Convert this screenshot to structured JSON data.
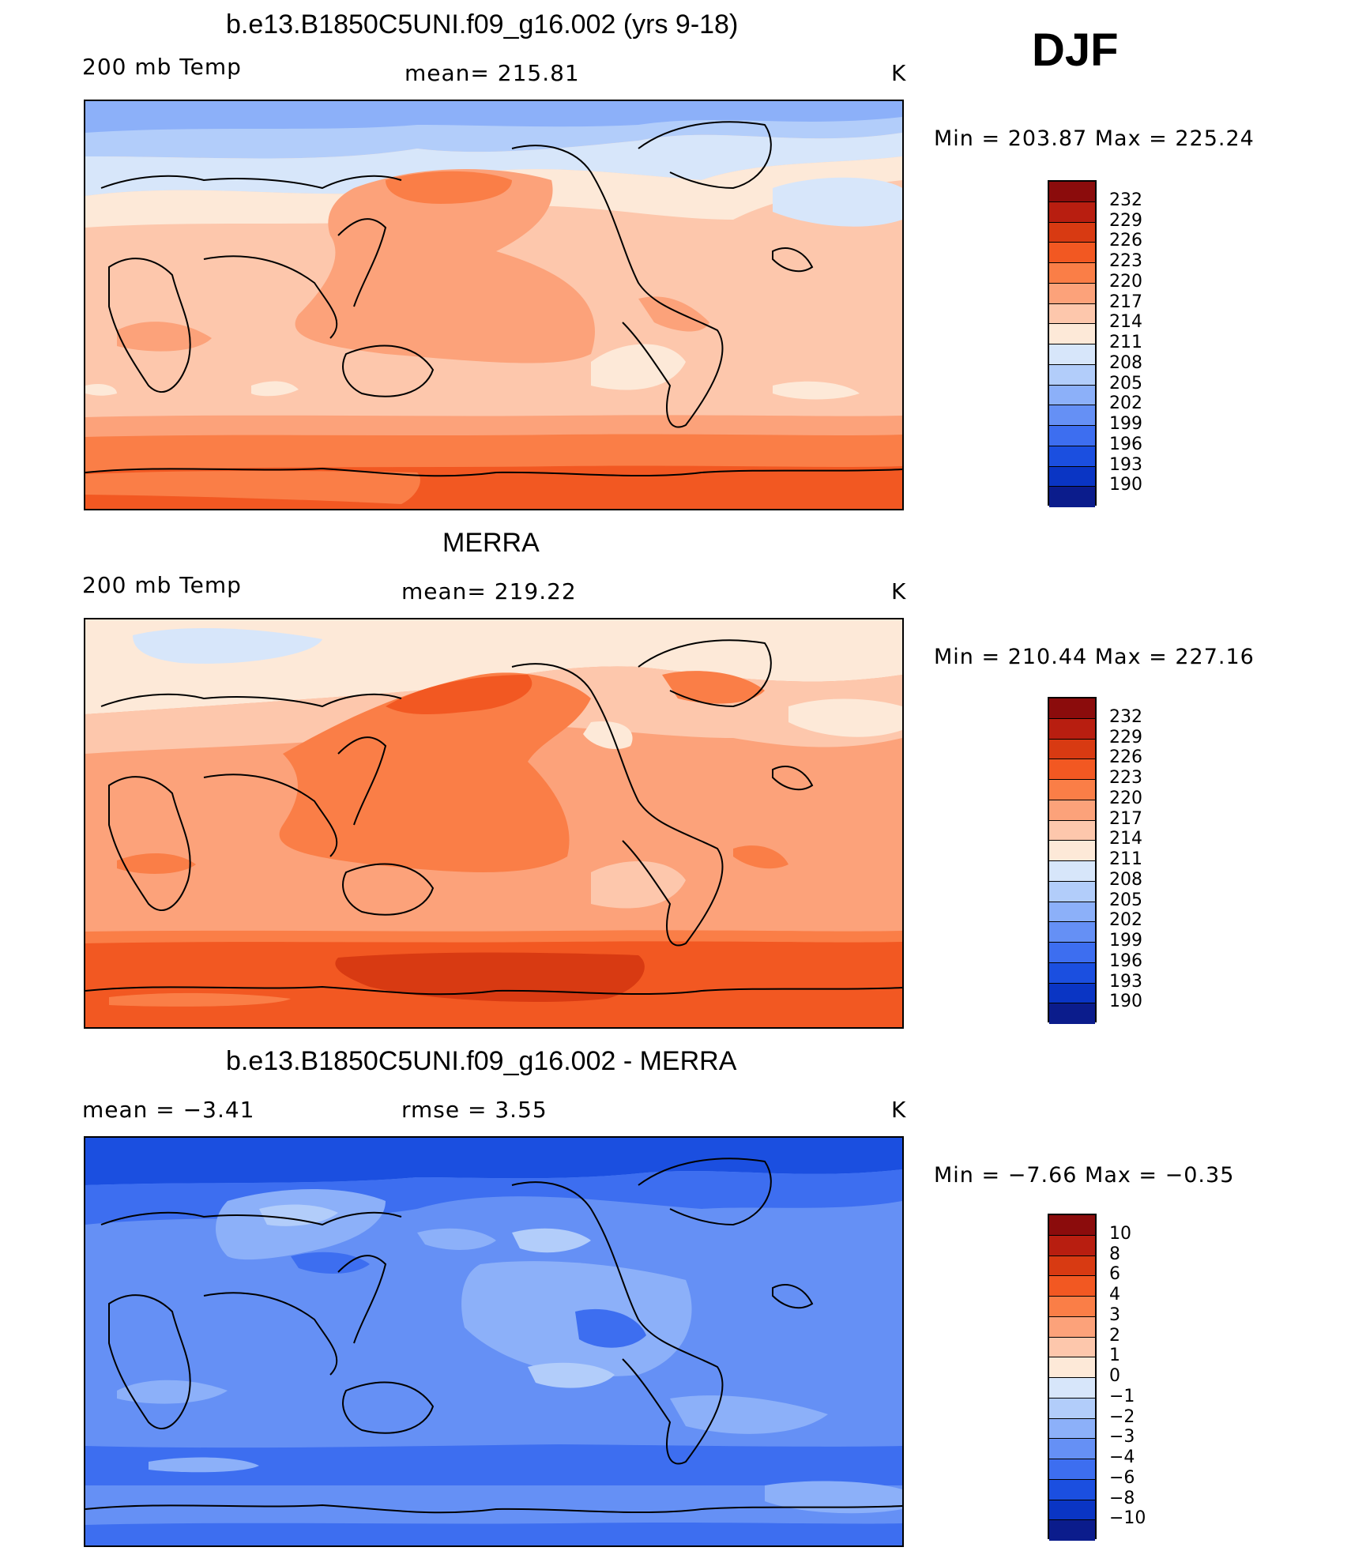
{
  "season": "DJF",
  "panels": [
    {
      "id": "model",
      "title": "b.e13.B1850C5UNI.f09_g16.002 (yrs 9-18)",
      "left_label": "200 mb Temp",
      "center_label": "mean=  215.81",
      "units": "K",
      "minmax": "Min  =  203.87  Max  =  225.24",
      "colorbar_ticks": [
        "232",
        "229",
        "226",
        "223",
        "220",
        "217",
        "214",
        "211",
        "208",
        "205",
        "202",
        "199",
        "196",
        "193",
        "190"
      ]
    },
    {
      "id": "obs",
      "title": "MERRA",
      "left_label": "200 mb Temp",
      "center_label": "mean=  219.22",
      "units": "K",
      "minmax": "Min  =  210.44  Max  =  227.16",
      "colorbar_ticks": [
        "232",
        "229",
        "226",
        "223",
        "220",
        "217",
        "214",
        "211",
        "208",
        "205",
        "202",
        "199",
        "196",
        "193",
        "190"
      ]
    },
    {
      "id": "diff",
      "title": "b.e13.B1850C5UNI.f09_g16.002 - MERRA",
      "left_label": "mean  =     −3.41",
      "center_label": "rmse  =      3.55",
      "units": "K",
      "minmax": "Min  =    −7.66  Max  =     −0.35",
      "colorbar_ticks": [
        "10",
        "8",
        "6",
        "4",
        "3",
        "2",
        "1",
        "0",
        "−1",
        "−2",
        "−3",
        "−4",
        "−6",
        "−8",
        "−10"
      ]
    }
  ],
  "colors": {
    "abs_scale": [
      "#8b0c0c",
      "#b81e10",
      "#d83a12",
      "#f25822",
      "#fa7e47",
      "#fca27a",
      "#fdc7ac",
      "#fde9d8",
      "#d7e6fa",
      "#b2cdfa",
      "#8cb0f9",
      "#6590f5",
      "#3d6ef0",
      "#1b4fe0",
      "#0a35c4",
      "#0b1c8c"
    ],
    "diff_scale": [
      "#8b0c0c",
      "#b81e10",
      "#d83a12",
      "#f25822",
      "#fa7e47",
      "#fca27a",
      "#fdc7ac",
      "#fde9d8",
      "#d7e6fa",
      "#b2cdfa",
      "#8cb0f9",
      "#6590f5",
      "#3d6ef0",
      "#1b4fe0",
      "#0a35c4",
      "#0b1c8c"
    ]
  }
}
